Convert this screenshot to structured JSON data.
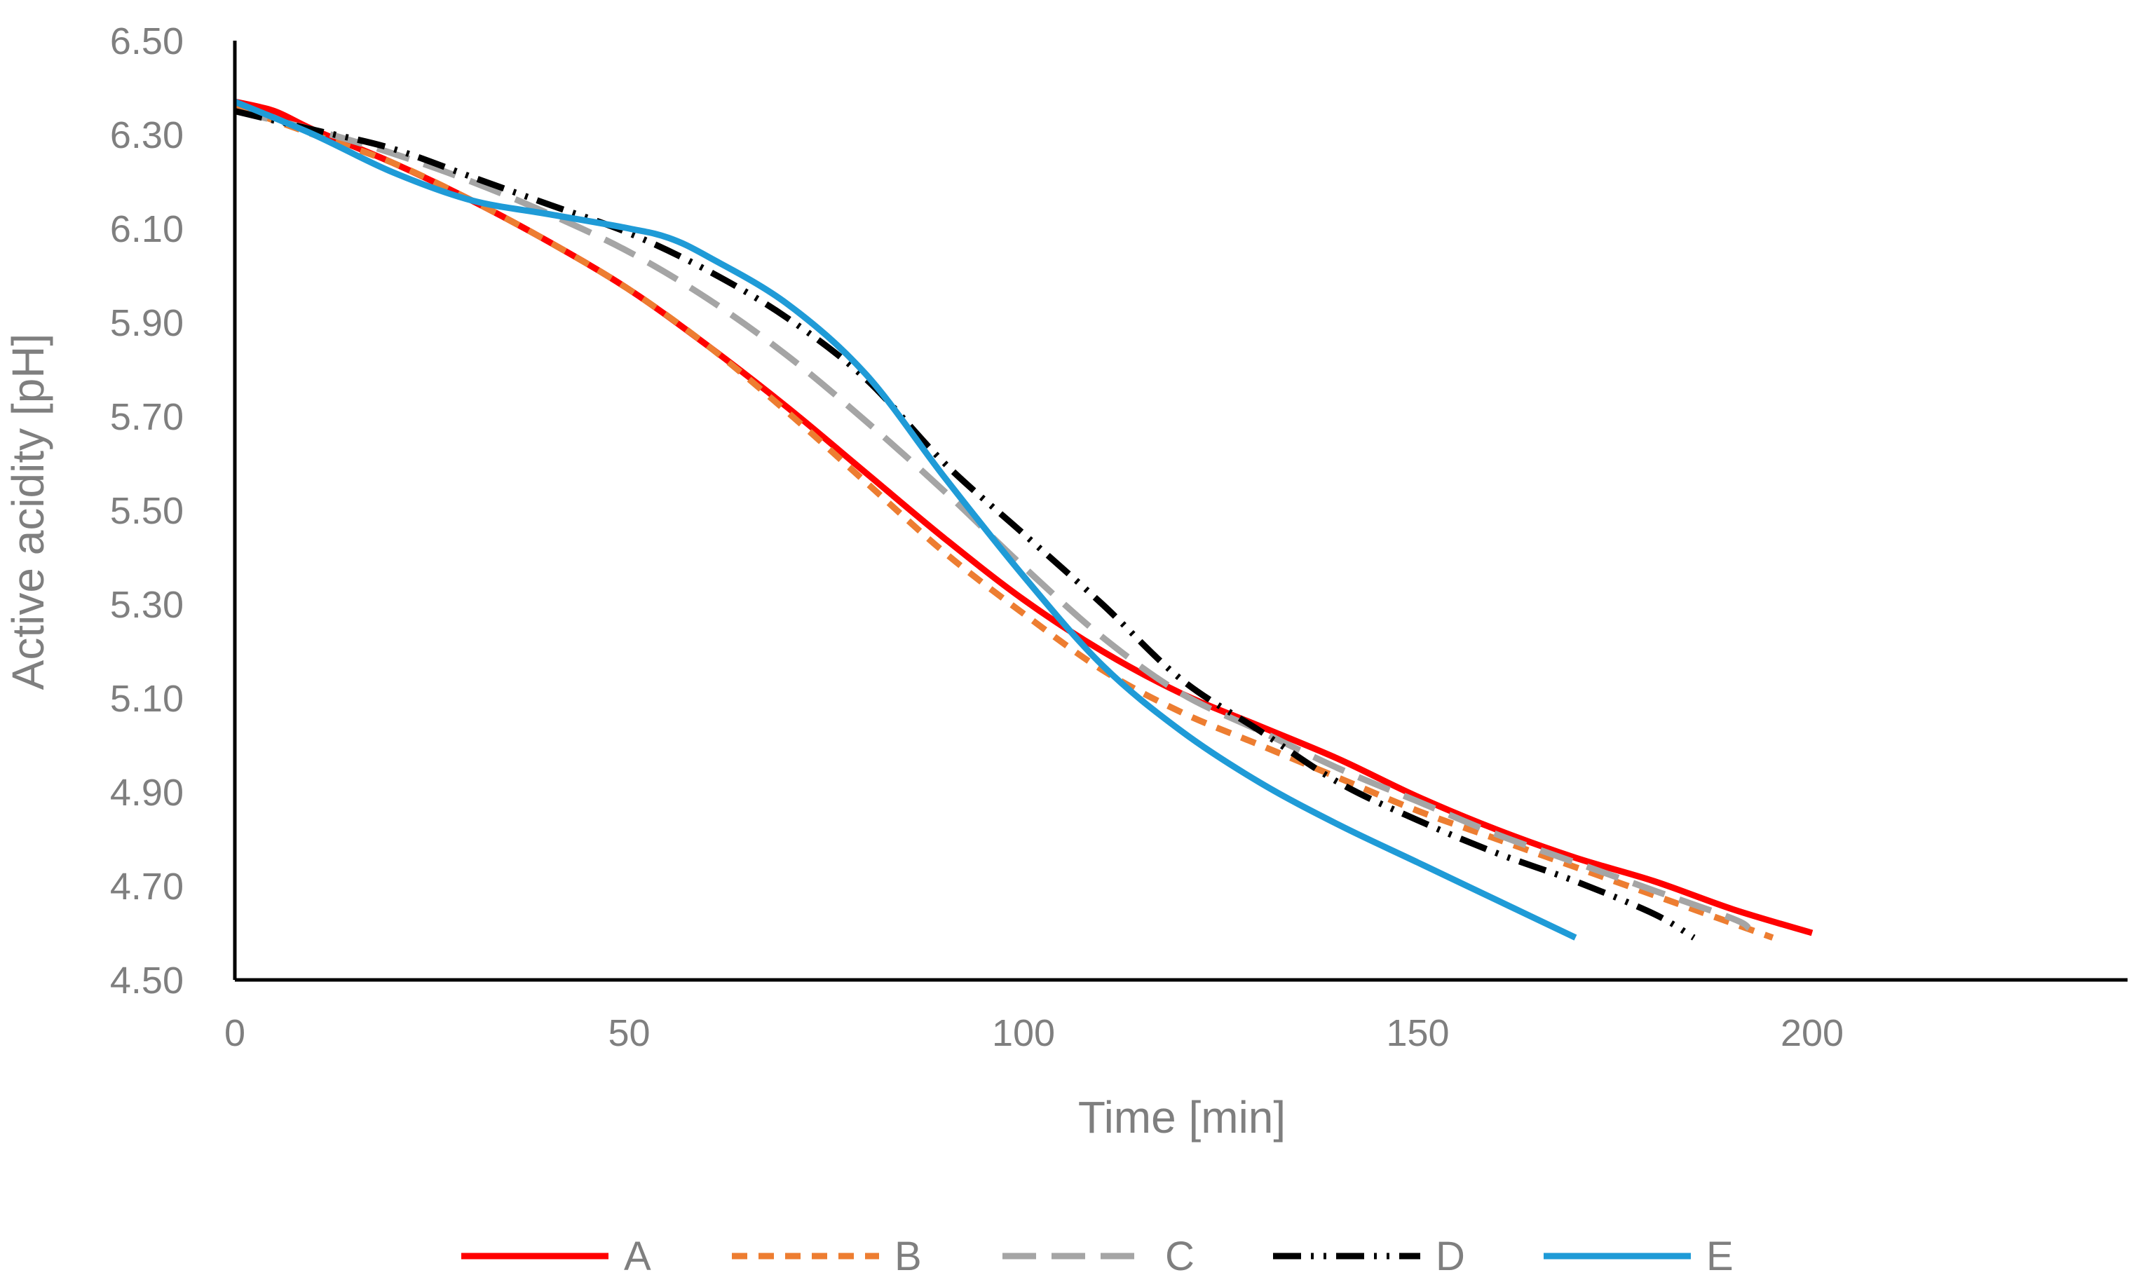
{
  "chart_data": {
    "type": "line",
    "title": "",
    "xlabel": "Time [min]",
    "ylabel": "Active acidity [pH]",
    "xlim": [
      0,
      240
    ],
    "ylim": [
      4.5,
      6.5
    ],
    "xticks": [
      0,
      50,
      100,
      150,
      200
    ],
    "xtick_labels": [
      "0",
      "50",
      "100",
      "150",
      "200"
    ],
    "yticks": [
      4.5,
      4.7,
      4.9,
      5.1,
      5.3,
      5.5,
      5.7,
      5.9,
      6.1,
      6.3,
      6.5
    ],
    "ytick_labels": [
      "4.50",
      "4.70",
      "4.90",
      "5.10",
      "5.30",
      "5.50",
      "5.70",
      "5.90",
      "6.10",
      "6.30",
      "6.50"
    ],
    "grid": false,
    "legend_position": "bottom",
    "series": [
      {
        "name": "A",
        "color": "#ff0000",
        "dash": "solid",
        "points": [
          [
            0,
            6.37
          ],
          [
            5,
            6.35
          ],
          [
            10,
            6.31
          ],
          [
            20,
            6.24
          ],
          [
            30,
            6.16
          ],
          [
            40,
            6.07
          ],
          [
            50,
            5.97
          ],
          [
            60,
            5.85
          ],
          [
            70,
            5.72
          ],
          [
            80,
            5.58
          ],
          [
            90,
            5.44
          ],
          [
            100,
            5.31
          ],
          [
            110,
            5.2
          ],
          [
            120,
            5.11
          ],
          [
            130,
            5.04
          ],
          [
            140,
            4.97
          ],
          [
            150,
            4.89
          ],
          [
            160,
            4.82
          ],
          [
            170,
            4.76
          ],
          [
            180,
            4.71
          ],
          [
            190,
            4.65
          ],
          [
            200,
            4.6
          ]
        ]
      },
      {
        "name": "B",
        "color": "#ed7d31",
        "dash": "dashed",
        "points": [
          [
            0,
            6.36
          ],
          [
            10,
            6.3
          ],
          [
            20,
            6.24
          ],
          [
            30,
            6.16
          ],
          [
            40,
            6.07
          ],
          [
            50,
            5.97
          ],
          [
            60,
            5.85
          ],
          [
            70,
            5.71
          ],
          [
            80,
            5.56
          ],
          [
            90,
            5.41
          ],
          [
            100,
            5.28
          ],
          [
            110,
            5.16
          ],
          [
            120,
            5.07
          ],
          [
            130,
            5.0
          ],
          [
            140,
            4.93
          ],
          [
            150,
            4.86
          ],
          [
            160,
            4.8
          ],
          [
            170,
            4.74
          ],
          [
            180,
            4.68
          ],
          [
            190,
            4.62
          ],
          [
            195,
            4.59
          ]
        ]
      },
      {
        "name": "C",
        "color": "#a5a5a5",
        "dash": "long-dashed",
        "points": [
          [
            0,
            6.35
          ],
          [
            10,
            6.31
          ],
          [
            20,
            6.26
          ],
          [
            30,
            6.2
          ],
          [
            40,
            6.13
          ],
          [
            50,
            6.05
          ],
          [
            60,
            5.95
          ],
          [
            70,
            5.83
          ],
          [
            80,
            5.69
          ],
          [
            90,
            5.54
          ],
          [
            100,
            5.38
          ],
          [
            110,
            5.23
          ],
          [
            120,
            5.11
          ],
          [
            130,
            5.03
          ],
          [
            140,
            4.95
          ],
          [
            150,
            4.88
          ],
          [
            160,
            4.81
          ],
          [
            170,
            4.75
          ],
          [
            180,
            4.69
          ],
          [
            190,
            4.63
          ],
          [
            192,
            4.61
          ]
        ]
      },
      {
        "name": "D",
        "color": "#000000",
        "dash": "dash-dot-dot",
        "points": [
          [
            0,
            6.35
          ],
          [
            10,
            6.31
          ],
          [
            20,
            6.27
          ],
          [
            30,
            6.21
          ],
          [
            40,
            6.15
          ],
          [
            50,
            6.09
          ],
          [
            60,
            6.01
          ],
          [
            70,
            5.91
          ],
          [
            80,
            5.78
          ],
          [
            90,
            5.6
          ],
          [
            100,
            5.45
          ],
          [
            110,
            5.3
          ],
          [
            120,
            5.14
          ],
          [
            130,
            5.03
          ],
          [
            140,
            4.92
          ],
          [
            150,
            4.84
          ],
          [
            160,
            4.77
          ],
          [
            170,
            4.71
          ],
          [
            180,
            4.64
          ],
          [
            185,
            4.59
          ]
        ]
      },
      {
        "name": "E",
        "color": "#1f9bd7",
        "dash": "solid",
        "points": [
          [
            0,
            6.37
          ],
          [
            10,
            6.3
          ],
          [
            20,
            6.22
          ],
          [
            30,
            6.16
          ],
          [
            40,
            6.13
          ],
          [
            50,
            6.1
          ],
          [
            55,
            6.08
          ],
          [
            60,
            6.04
          ],
          [
            70,
            5.94
          ],
          [
            80,
            5.79
          ],
          [
            90,
            5.57
          ],
          [
            100,
            5.36
          ],
          [
            110,
            5.17
          ],
          [
            120,
            5.03
          ],
          [
            130,
            4.92
          ],
          [
            140,
            4.83
          ],
          [
            150,
            4.75
          ],
          [
            160,
            4.67
          ],
          [
            170,
            4.59
          ]
        ]
      }
    ]
  }
}
